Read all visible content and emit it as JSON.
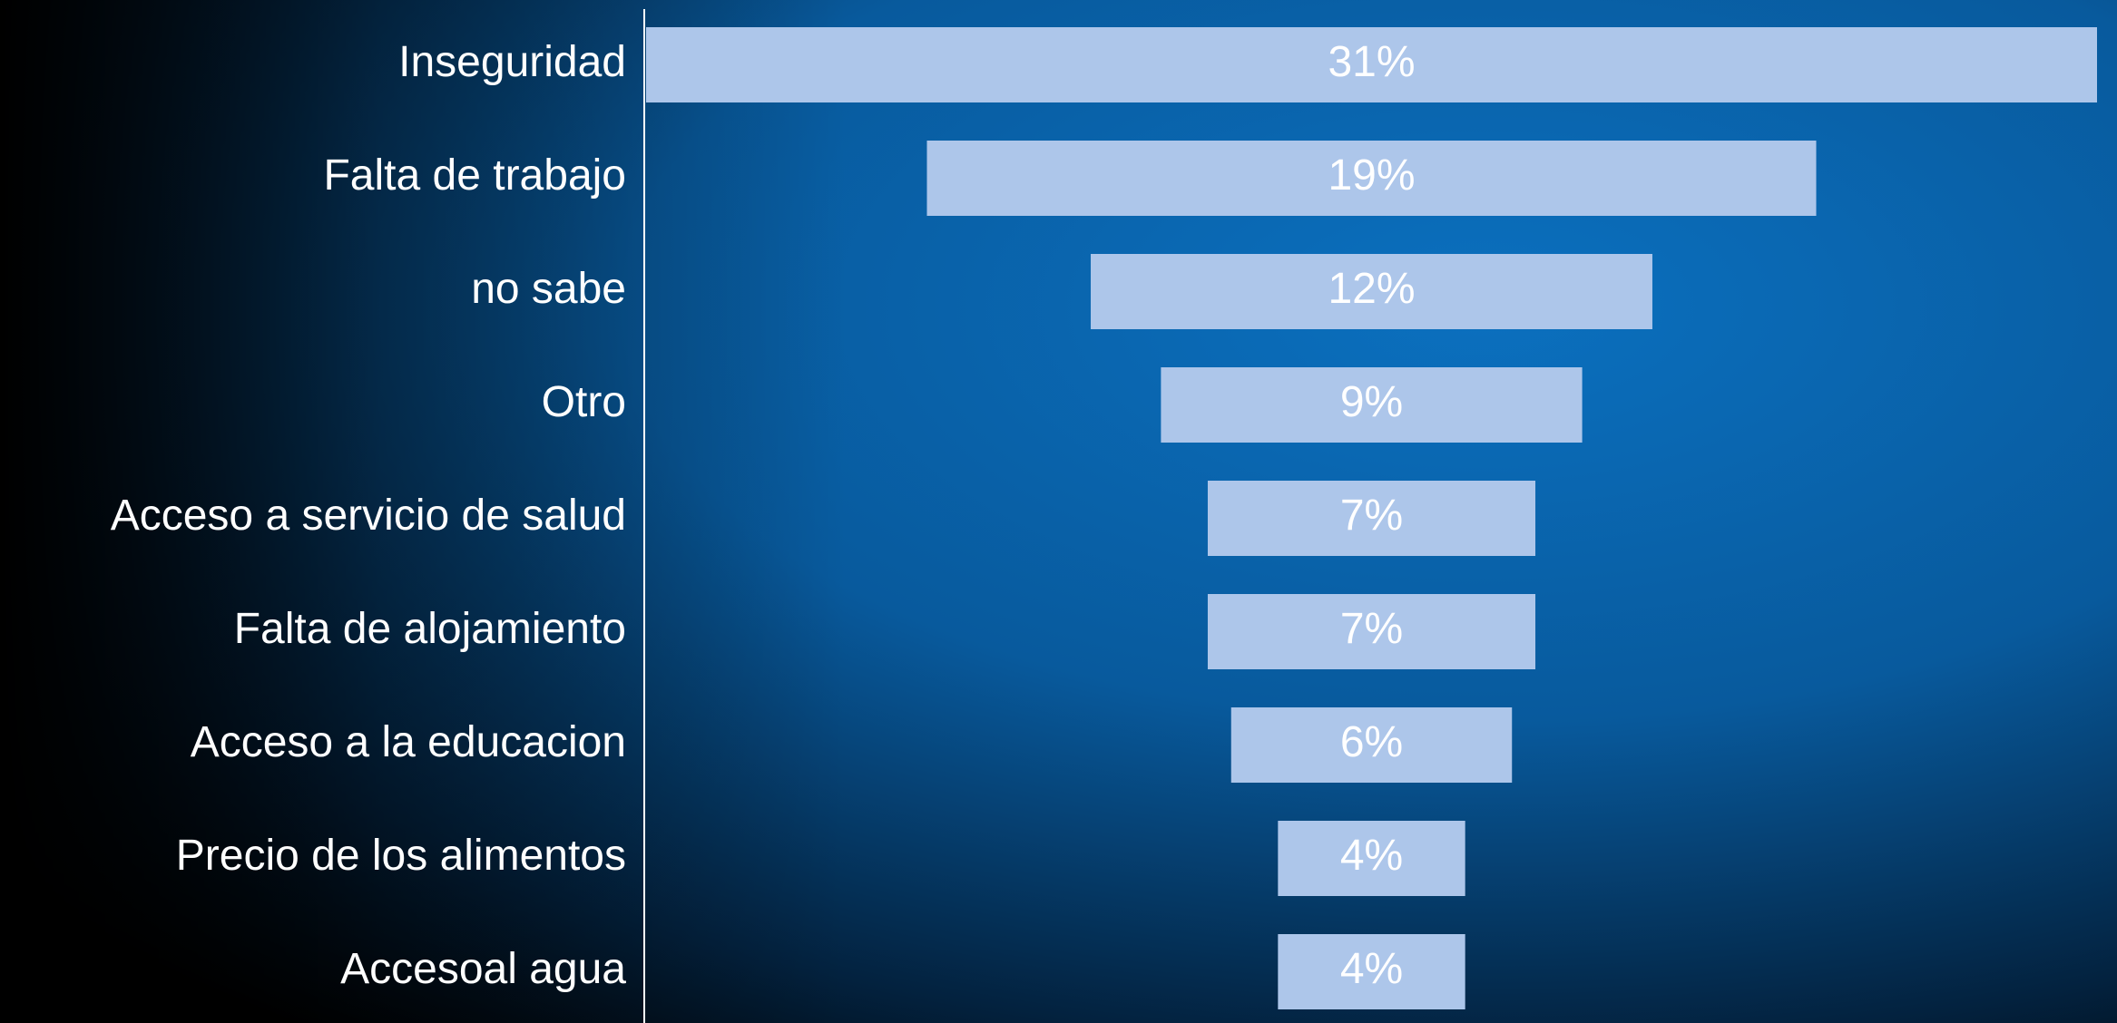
{
  "chart_data": {
    "type": "funnel",
    "categories": [
      "Inseguridad",
      "Falta de trabajo",
      "no sabe",
      "Otro",
      "Acceso a servicio de salud",
      "Falta de alojamiento",
      "Acceso a la educacion",
      "Precio de los alimentos",
      "Accesoal agua"
    ],
    "values": [
      31,
      19,
      12,
      9,
      7,
      7,
      6,
      4,
      4
    ],
    "value_labels": [
      "31%",
      "19%",
      "12%",
      "9%",
      "7%",
      "7%",
      "6%",
      "4%",
      "4%"
    ],
    "color": "#adc6ea"
  }
}
